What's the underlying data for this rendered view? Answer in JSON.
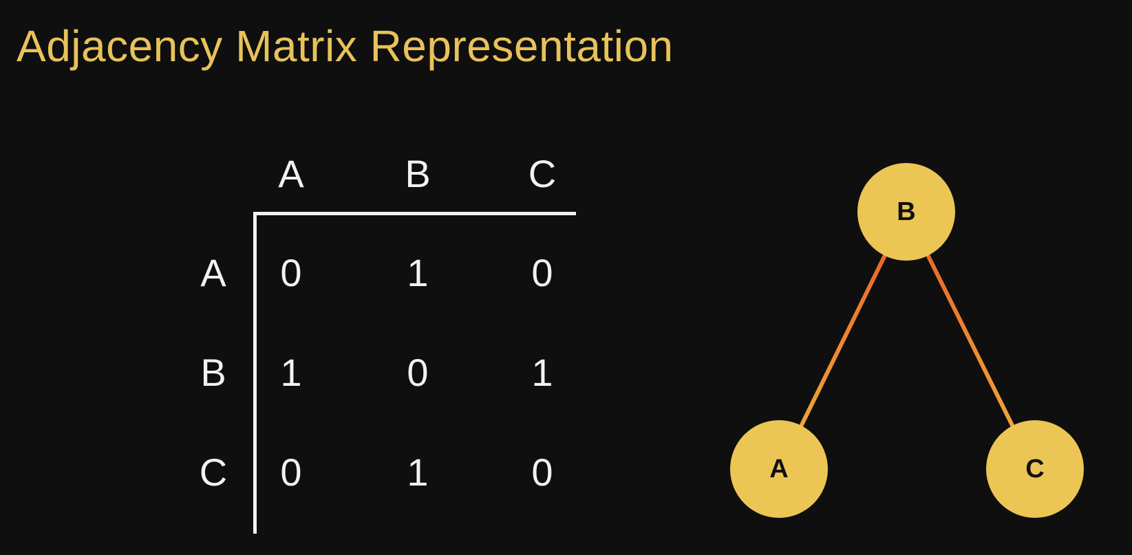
{
  "title": "Adjacency Matrix Representation",
  "matrix": {
    "columns": [
      "A",
      "B",
      "C"
    ],
    "rows": [
      {
        "label": "A",
        "values": [
          "0",
          "1",
          "0"
        ]
      },
      {
        "label": "B",
        "values": [
          "1",
          "0",
          "1"
        ]
      },
      {
        "label": "C",
        "values": [
          "0",
          "1",
          "0"
        ]
      }
    ]
  },
  "graph": {
    "nodes": [
      {
        "id": "B",
        "label": "B"
      },
      {
        "id": "A",
        "label": "A"
      },
      {
        "id": "C",
        "label": "C"
      }
    ],
    "edges": [
      {
        "from": "B",
        "to": "A"
      },
      {
        "from": "B",
        "to": "C"
      }
    ]
  },
  "colors": {
    "background": "#0f0f0f",
    "title": "#e8c25a",
    "text": "#f2f2f2",
    "node_fill": "#ecc654",
    "edge_top": "#e85a28",
    "edge_bottom": "#f0b43c"
  }
}
